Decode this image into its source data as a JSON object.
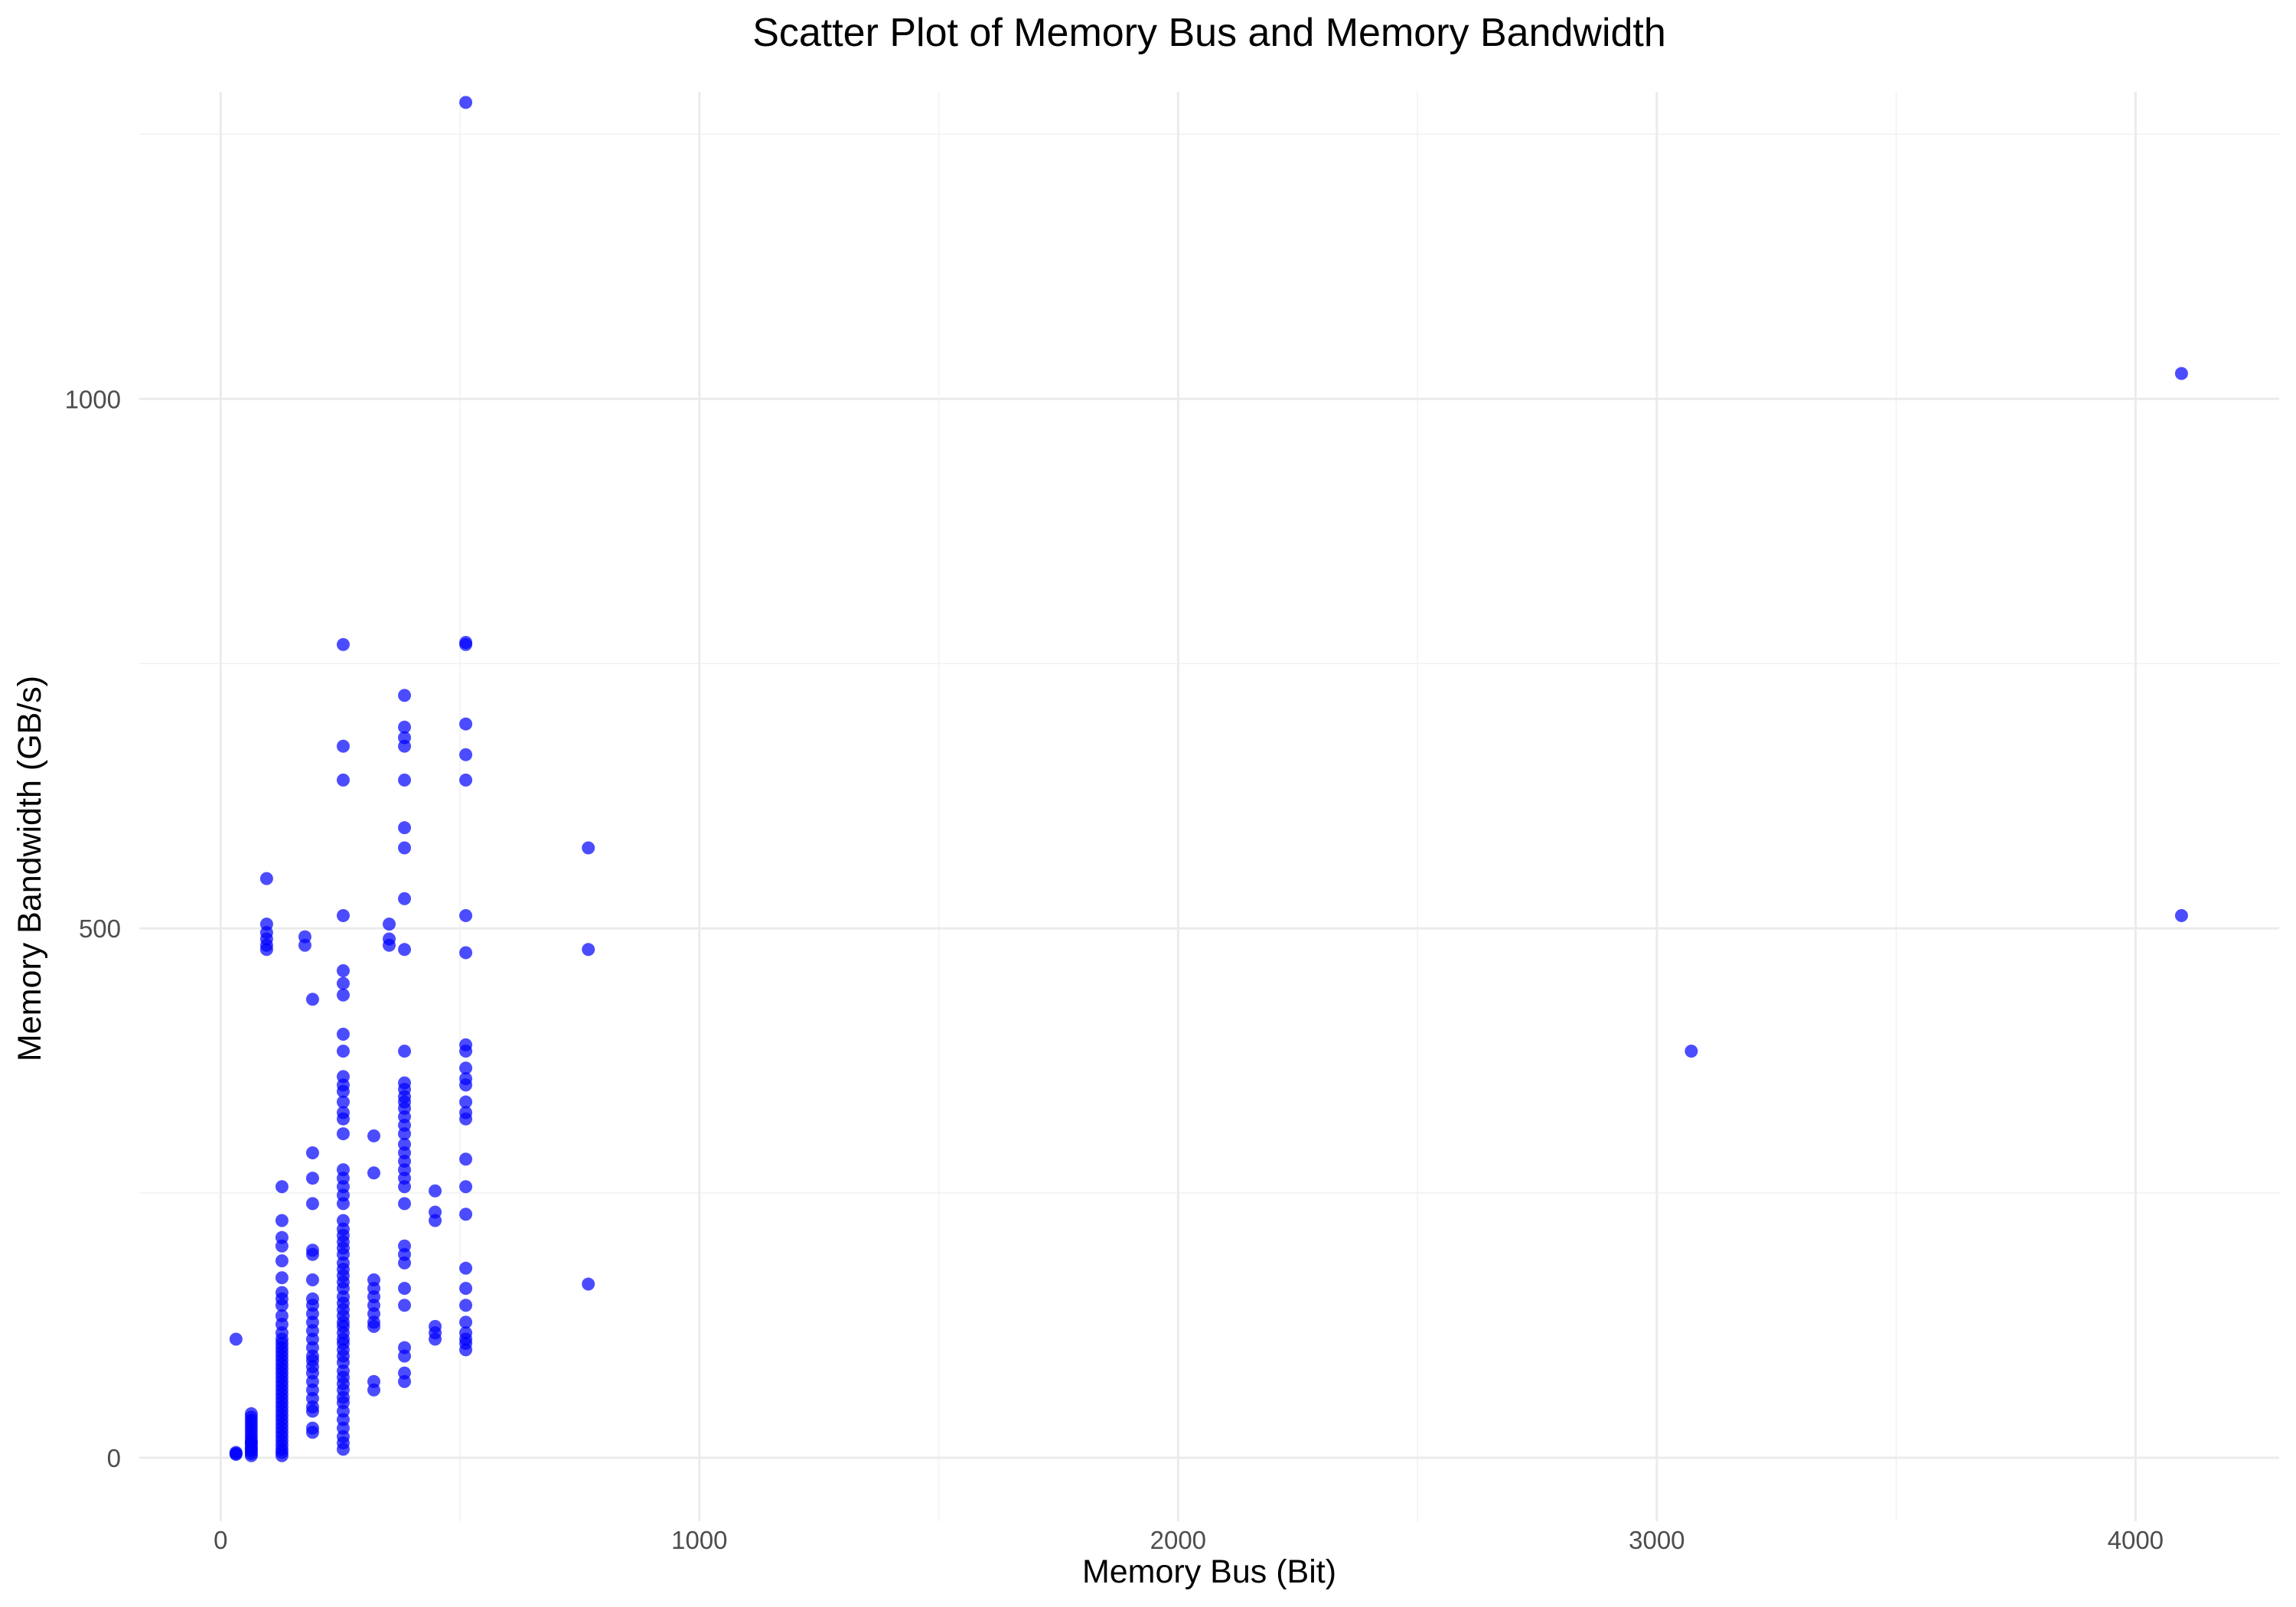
{
  "chart_data": {
    "type": "scatter",
    "title": "Scatter Plot of Memory Bus and Memory Bandwidth",
    "xlabel": "Memory Bus (Bit)",
    "ylabel": "Memory Bandwidth (GB/s)",
    "xlim": [
      -170,
      4300
    ],
    "ylim": [
      -60,
      1290
    ],
    "x_ticks": [
      0,
      1000,
      2000,
      3000,
      4000
    ],
    "y_ticks": [
      0,
      500,
      1000
    ],
    "grid": true,
    "legend": "none",
    "point_color": "#0000ff",
    "points": [
      [
        32,
        3.2
      ],
      [
        32,
        4.0
      ],
      [
        32,
        5.0
      ],
      [
        32,
        112
      ],
      [
        64,
        2.0
      ],
      [
        64,
        4.0
      ],
      [
        64,
        6.4
      ],
      [
        64,
        8.0
      ],
      [
        64,
        10.0
      ],
      [
        64,
        12.8
      ],
      [
        64,
        14.4
      ],
      [
        64,
        16.0
      ],
      [
        64,
        19.2
      ],
      [
        64,
        22.4
      ],
      [
        64,
        25.6
      ],
      [
        64,
        28.8
      ],
      [
        64,
        32.0
      ],
      [
        64,
        35.2
      ],
      [
        64,
        38.4
      ],
      [
        64,
        41.6
      ],
      [
        96,
        480
      ],
      [
        96,
        484
      ],
      [
        96,
        490
      ],
      [
        96,
        496
      ],
      [
        96,
        504
      ],
      [
        96,
        547
      ],
      [
        128,
        2
      ],
      [
        128,
        5
      ],
      [
        128,
        8
      ],
      [
        128,
        12
      ],
      [
        128,
        16
      ],
      [
        128,
        20
      ],
      [
        128,
        24
      ],
      [
        128,
        28
      ],
      [
        128,
        32
      ],
      [
        128,
        36
      ],
      [
        128,
        40
      ],
      [
        128,
        44
      ],
      [
        128,
        48
      ],
      [
        128,
        52
      ],
      [
        128,
        56
      ],
      [
        128,
        60
      ],
      [
        128,
        64
      ],
      [
        128,
        68
      ],
      [
        128,
        72
      ],
      [
        128,
        76
      ],
      [
        128,
        80
      ],
      [
        128,
        84
      ],
      [
        128,
        88
      ],
      [
        128,
        92
      ],
      [
        128,
        96
      ],
      [
        128,
        100
      ],
      [
        128,
        104
      ],
      [
        128,
        108
      ],
      [
        128,
        112
      ],
      [
        128,
        118
      ],
      [
        128,
        126
      ],
      [
        128,
        134
      ],
      [
        128,
        144
      ],
      [
        128,
        150
      ],
      [
        128,
        156
      ],
      [
        128,
        170
      ],
      [
        128,
        186
      ],
      [
        128,
        200
      ],
      [
        128,
        208
      ],
      [
        128,
        224
      ],
      [
        128,
        256
      ],
      [
        176,
        484
      ],
      [
        176,
        492
      ],
      [
        192,
        24
      ],
      [
        192,
        28
      ],
      [
        192,
        44
      ],
      [
        192,
        48
      ],
      [
        192,
        56
      ],
      [
        192,
        64
      ],
      [
        192,
        72
      ],
      [
        192,
        80
      ],
      [
        192,
        86
      ],
      [
        192,
        92
      ],
      [
        192,
        96
      ],
      [
        192,
        104
      ],
      [
        192,
        112
      ],
      [
        192,
        120
      ],
      [
        192,
        128
      ],
      [
        192,
        136
      ],
      [
        192,
        144
      ],
      [
        192,
        150
      ],
      [
        192,
        168
      ],
      [
        192,
        192
      ],
      [
        192,
        196
      ],
      [
        192,
        240
      ],
      [
        192,
        264
      ],
      [
        192,
        288
      ],
      [
        192,
        433
      ],
      [
        256,
        8
      ],
      [
        256,
        14
      ],
      [
        256,
        20
      ],
      [
        256,
        28
      ],
      [
        256,
        36
      ],
      [
        256,
        44
      ],
      [
        256,
        52
      ],
      [
        256,
        57
      ],
      [
        256,
        64
      ],
      [
        256,
        70
      ],
      [
        256,
        76
      ],
      [
        256,
        82
      ],
      [
        256,
        90
      ],
      [
        256,
        96
      ],
      [
        256,
        102
      ],
      [
        256,
        108
      ],
      [
        256,
        112
      ],
      [
        256,
        118
      ],
      [
        256,
        124
      ],
      [
        256,
        128
      ],
      [
        256,
        134
      ],
      [
        256,
        140
      ],
      [
        256,
        146
      ],
      [
        256,
        152
      ],
      [
        256,
        160
      ],
      [
        256,
        166
      ],
      [
        256,
        172
      ],
      [
        256,
        178
      ],
      [
        256,
        184
      ],
      [
        256,
        192
      ],
      [
        256,
        198
      ],
      [
        256,
        204
      ],
      [
        256,
        210
      ],
      [
        256,
        216
      ],
      [
        256,
        224
      ],
      [
        256,
        240
      ],
      [
        256,
        248
      ],
      [
        256,
        256
      ],
      [
        256,
        264
      ],
      [
        256,
        272
      ],
      [
        256,
        306
      ],
      [
        256,
        320
      ],
      [
        256,
        326
      ],
      [
        256,
        336
      ],
      [
        256,
        346
      ],
      [
        256,
        352
      ],
      [
        256,
        360
      ],
      [
        256,
        384
      ],
      [
        256,
        400
      ],
      [
        256,
        437
      ],
      [
        256,
        448
      ],
      [
        256,
        460
      ],
      [
        256,
        512
      ],
      [
        256,
        640
      ],
      [
        256,
        672
      ],
      [
        256,
        768
      ],
      [
        320,
        64
      ],
      [
        320,
        72
      ],
      [
        320,
        124
      ],
      [
        320,
        128
      ],
      [
        320,
        136
      ],
      [
        320,
        144
      ],
      [
        320,
        152
      ],
      [
        320,
        160
      ],
      [
        320,
        168
      ],
      [
        320,
        269
      ],
      [
        320,
        304
      ],
      [
        352,
        484
      ],
      [
        352,
        490
      ],
      [
        352,
        504
      ],
      [
        384,
        72
      ],
      [
        384,
        80
      ],
      [
        384,
        96
      ],
      [
        384,
        104
      ],
      [
        384,
        144
      ],
      [
        384,
        160
      ],
      [
        384,
        184
      ],
      [
        384,
        192
      ],
      [
        384,
        200
      ],
      [
        384,
        240
      ],
      [
        384,
        256
      ],
      [
        384,
        264
      ],
      [
        384,
        272
      ],
      [
        384,
        280
      ],
      [
        384,
        288
      ],
      [
        384,
        296
      ],
      [
        384,
        306
      ],
      [
        384,
        314
      ],
      [
        384,
        322
      ],
      [
        384,
        330
      ],
      [
        384,
        336
      ],
      [
        384,
        341
      ],
      [
        384,
        348
      ],
      [
        384,
        354
      ],
      [
        384,
        384
      ],
      [
        384,
        480
      ],
      [
        384,
        528
      ],
      [
        384,
        576
      ],
      [
        384,
        595
      ],
      [
        384,
        640
      ],
      [
        384,
        672
      ],
      [
        384,
        680
      ],
      [
        384,
        690
      ],
      [
        384,
        720
      ],
      [
        448,
        112
      ],
      [
        448,
        118
      ],
      [
        448,
        124
      ],
      [
        448,
        224
      ],
      [
        448,
        232
      ],
      [
        448,
        252
      ],
      [
        512,
        102
      ],
      [
        512,
        108
      ],
      [
        512,
        112
      ],
      [
        512,
        118
      ],
      [
        512,
        128
      ],
      [
        512,
        144
      ],
      [
        512,
        160
      ],
      [
        512,
        179
      ],
      [
        512,
        230
      ],
      [
        512,
        256
      ],
      [
        512,
        282
      ],
      [
        512,
        320
      ],
      [
        512,
        326
      ],
      [
        512,
        336
      ],
      [
        512,
        352
      ],
      [
        512,
        358
      ],
      [
        512,
        368
      ],
      [
        512,
        384
      ],
      [
        512,
        390
      ],
      [
        512,
        477
      ],
      [
        512,
        512
      ],
      [
        512,
        640
      ],
      [
        512,
        664
      ],
      [
        512,
        693
      ],
      [
        512,
        768
      ],
      [
        512,
        770
      ],
      [
        512,
        1280
      ],
      [
        768,
        164
      ],
      [
        768,
        480
      ],
      [
        768,
        576
      ],
      [
        3072,
        384
      ],
      [
        4096,
        512
      ],
      [
        4096,
        1024
      ]
    ]
  }
}
